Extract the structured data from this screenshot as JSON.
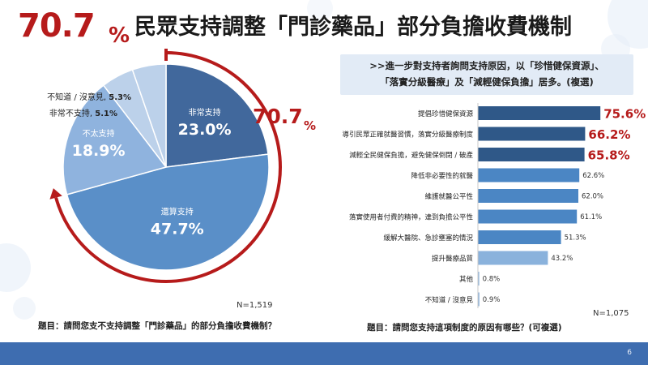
{
  "title": {
    "percent": "70.7",
    "percent_sign": "%",
    "text": "民眾支持調整「門診藥品」部分負擔收費機制"
  },
  "callout": {
    "line1": ">>進一步對支持者詢問支持原因，以「珍惜健保資源」、",
    "line2": "「落實分級醫療」及「減輕健保負擔」居多。(複選)"
  },
  "colors": {
    "accent_red": "#b61b1b",
    "pie_dark": "#41689c",
    "pie_mid": "#5a8fc8",
    "pie_light": "#8fb3de",
    "pie_pale": "#bcd1ea",
    "bar_dark": "#2f5888",
    "bar_mid": "#4b86c4",
    "bar_light": "#8ab2dc",
    "footer": "#3e6db0"
  },
  "chart_data": [
    {
      "type": "pie",
      "slices": [
        {
          "label": "非常支持",
          "value": 23.0,
          "value_label": "23.0%"
        },
        {
          "label": "還算支持",
          "value": 47.7,
          "value_label": "47.7%"
        },
        {
          "label": "不太支持",
          "value": 18.9,
          "value_label": "18.9%"
        },
        {
          "label": "非常不支持",
          "value": 5.1,
          "value_label": "5.1%"
        },
        {
          "label": "不知道 / 沒意見",
          "value": 5.3,
          "value_label": "5.3%"
        }
      ],
      "annotation": {
        "value": "70.7",
        "sign": "%"
      },
      "n_label": "N=1,519",
      "question": "題目：請問您支不支持調整「門診藥品」的部分負擔收費機制？"
    },
    {
      "type": "bar",
      "orientation": "horizontal",
      "categories": [
        "提倡珍惜健保資源",
        "導引民眾正確就醫習慣，落實分級醫療制度",
        "減輕全民健保負擔，避免健保倒閉 / 破產",
        "降低非必要性的就醫",
        "維護就醫公平性",
        "落實使用者付費的精神，達到負擔公平性",
        "緩解大醫院、急診壅塞的情況",
        "提升醫療品質",
        "其他",
        "不知道 / 沒意見"
      ],
      "values": [
        75.6,
        66.2,
        65.8,
        62.6,
        62.0,
        61.1,
        51.3,
        43.2,
        0.8,
        0.9
      ],
      "value_labels": [
        "75.6%",
        "66.2%",
        "65.8%",
        "62.6%",
        "62.0%",
        "61.1%",
        "51.3%",
        "43.2%",
        "0.8%",
        "0.9%"
      ],
      "n_label": "N=1,075",
      "question": "題目：請問您支持這項制度的原因有哪些？(可複選)"
    }
  ],
  "page_number": "6"
}
